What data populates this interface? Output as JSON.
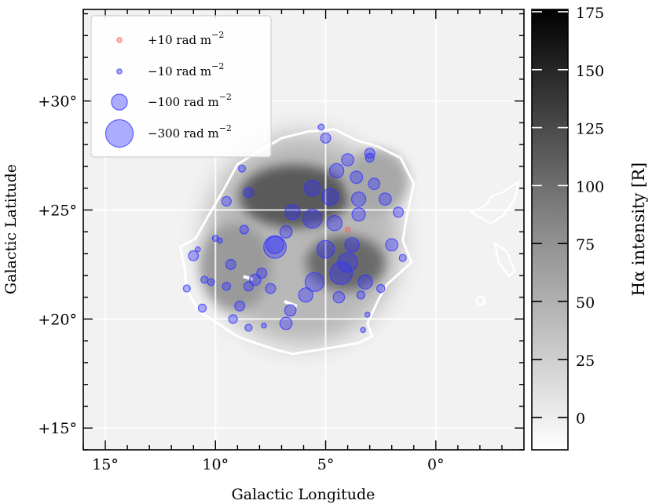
{
  "chart_data": {
    "type": "scatter",
    "title": "",
    "xlabel": "Galactic Longitude",
    "ylabel": "Galactic Latitude",
    "xlim": [
      16,
      -4
    ],
    "ylim": [
      14,
      34.2
    ],
    "x_ticks": [
      15,
      10,
      5,
      0
    ],
    "x_tick_labels": [
      "15°",
      "10°",
      "5°",
      "0°"
    ],
    "y_ticks": [
      15,
      20,
      25,
      30
    ],
    "y_tick_labels": [
      "+15°",
      "+20°",
      "+25°",
      "+30°"
    ],
    "grid": true,
    "legend": {
      "position": "top-left",
      "entries": [
        {
          "label": "+10 rad m",
          "exponent": "−2",
          "rm": 10,
          "color": "#ff6060"
        },
        {
          "label": "−10 rad m",
          "exponent": "−2",
          "rm": -10,
          "color": "#3333ff"
        },
        {
          "label": "−100 rad m",
          "exponent": "−2",
          "rm": -100,
          "color": "#3333ff"
        },
        {
          "label": "−300 rad m",
          "exponent": "−2",
          "rm": -300,
          "color": "#3333ff"
        }
      ]
    },
    "colorbar": {
      "label": "Hα intensity [R]",
      "range": [
        -14,
        176
      ],
      "ticks": [
        0,
        25,
        50,
        75,
        100,
        125,
        150,
        175
      ],
      "tick_labels": [
        "0",
        "25",
        "50",
        "75",
        "100",
        "125",
        "150",
        "175"
      ],
      "colormap": "gray_r"
    },
    "positive_color": "#ff6060",
    "negative_color": "#3333ff",
    "contour_color": "#ffffff",
    "contour_outline": [
      [
        4.6,
        28.7
      ],
      [
        3.6,
        28.2
      ],
      [
        2.6,
        27.9
      ],
      [
        1.6,
        27.4
      ],
      [
        1.0,
        26.2
      ],
      [
        1.3,
        24.8
      ],
      [
        1.5,
        23.6
      ],
      [
        1.1,
        22.6
      ],
      [
        2.2,
        21.6
      ],
      [
        2.6,
        20.9
      ],
      [
        3.1,
        19.8
      ],
      [
        2.9,
        19.2
      ],
      [
        3.5,
        18.9
      ],
      [
        5.2,
        18.6
      ],
      [
        6.5,
        18.4
      ],
      [
        7.3,
        18.6
      ],
      [
        8.2,
        18.9
      ],
      [
        9.0,
        19.2
      ],
      [
        9.9,
        19.8
      ],
      [
        10.7,
        20.3
      ],
      [
        11.3,
        21.3
      ],
      [
        11.4,
        22.3
      ],
      [
        11.6,
        23.3
      ],
      [
        10.9,
        23.7
      ],
      [
        10.4,
        24.6
      ],
      [
        10.0,
        25.3
      ],
      [
        9.7,
        25.8
      ],
      [
        9.0,
        27.1
      ],
      [
        8.2,
        27.6
      ],
      [
        7.0,
        28.3
      ],
      [
        5.8,
        28.6
      ],
      [
        4.6,
        28.7
      ]
    ],
    "points": [
      {
        "l": 5.2,
        "b": 28.8,
        "rm": -15
      },
      {
        "l": 5.0,
        "b": 28.3,
        "rm": -40
      },
      {
        "l": 4.0,
        "b": 27.3,
        "rm": -60
      },
      {
        "l": 3.0,
        "b": 27.6,
        "rm": -40
      },
      {
        "l": 3.0,
        "b": 27.4,
        "rm": -30
      },
      {
        "l": 4.5,
        "b": 26.8,
        "rm": -80
      },
      {
        "l": 3.6,
        "b": 26.5,
        "rm": -60
      },
      {
        "l": 2.8,
        "b": 26.2,
        "rm": -50
      },
      {
        "l": 5.6,
        "b": 26.0,
        "rm": -100
      },
      {
        "l": 4.8,
        "b": 25.6,
        "rm": -110
      },
      {
        "l": 3.5,
        "b": 25.5,
        "rm": -80
      },
      {
        "l": 2.3,
        "b": 25.5,
        "rm": -60
      },
      {
        "l": 8.8,
        "b": 26.9,
        "rm": -20
      },
      {
        "l": 8.5,
        "b": 25.8,
        "rm": -40
      },
      {
        "l": 9.5,
        "b": 25.4,
        "rm": -35
      },
      {
        "l": 6.5,
        "b": 24.9,
        "rm": -90
      },
      {
        "l": 6.8,
        "b": 24.0,
        "rm": -60
      },
      {
        "l": 5.6,
        "b": 24.6,
        "rm": -140
      },
      {
        "l": 4.6,
        "b": 24.4,
        "rm": -90
      },
      {
        "l": 3.5,
        "b": 24.8,
        "rm": -70
      },
      {
        "l": 1.7,
        "b": 24.9,
        "rm": -40
      },
      {
        "l": 10.0,
        "b": 23.7,
        "rm": -15
      },
      {
        "l": 10.8,
        "b": 23.2,
        "rm": -10
      },
      {
        "l": 8.7,
        "b": 24.1,
        "rm": -30
      },
      {
        "l": 7.3,
        "b": 23.4,
        "rm": -120
      },
      {
        "l": 7.3,
        "b": 23.3,
        "rm": -200
      },
      {
        "l": 5.0,
        "b": 23.2,
        "rm": -120
      },
      {
        "l": 3.8,
        "b": 23.4,
        "rm": -80
      },
      {
        "l": 2.0,
        "b": 23.4,
        "rm": -60
      },
      {
        "l": 1.5,
        "b": 22.8,
        "rm": -20
      },
      {
        "l": 11.0,
        "b": 22.9,
        "rm": -40
      },
      {
        "l": 9.3,
        "b": 22.5,
        "rm": -40
      },
      {
        "l": 7.9,
        "b": 22.1,
        "rm": -40
      },
      {
        "l": 8.2,
        "b": 21.8,
        "rm": -50
      },
      {
        "l": 4.0,
        "b": 22.6,
        "rm": -150
      },
      {
        "l": 4.3,
        "b": 22.1,
        "rm": -200
      },
      {
        "l": 5.5,
        "b": 21.7,
        "rm": -140
      },
      {
        "l": 3.2,
        "b": 21.7,
        "rm": -80
      },
      {
        "l": 2.5,
        "b": 21.4,
        "rm": -25
      },
      {
        "l": 10.5,
        "b": 21.8,
        "rm": -20
      },
      {
        "l": 10.2,
        "b": 21.7,
        "rm": -20
      },
      {
        "l": 9.5,
        "b": 21.5,
        "rm": -25
      },
      {
        "l": 8.5,
        "b": 21.5,
        "rm": -35
      },
      {
        "l": 7.5,
        "b": 21.4,
        "rm": -40
      },
      {
        "l": 5.9,
        "b": 21.1,
        "rm": -80
      },
      {
        "l": 4.4,
        "b": 21.0,
        "rm": -50
      },
      {
        "l": 3.4,
        "b": 21.1,
        "rm": -25
      },
      {
        "l": 11.3,
        "b": 21.4,
        "rm": -20
      },
      {
        "l": 10.6,
        "b": 20.5,
        "rm": -25
      },
      {
        "l": 8.9,
        "b": 20.6,
        "rm": -40
      },
      {
        "l": 6.6,
        "b": 20.4,
        "rm": -50
      },
      {
        "l": 6.8,
        "b": 19.8,
        "rm": -60
      },
      {
        "l": 9.2,
        "b": 20.0,
        "rm": -30
      },
      {
        "l": 8.5,
        "b": 19.6,
        "rm": -20
      },
      {
        "l": 7.8,
        "b": 19.7,
        "rm": -10
      },
      {
        "l": 3.3,
        "b": 19.5,
        "rm": -10
      },
      {
        "l": 3.1,
        "b": 20.2,
        "rm": -10
      },
      {
        "l": 9.8,
        "b": 23.6,
        "rm": -10
      },
      {
        "l": 4.0,
        "b": 24.1,
        "rm": 10
      }
    ]
  }
}
